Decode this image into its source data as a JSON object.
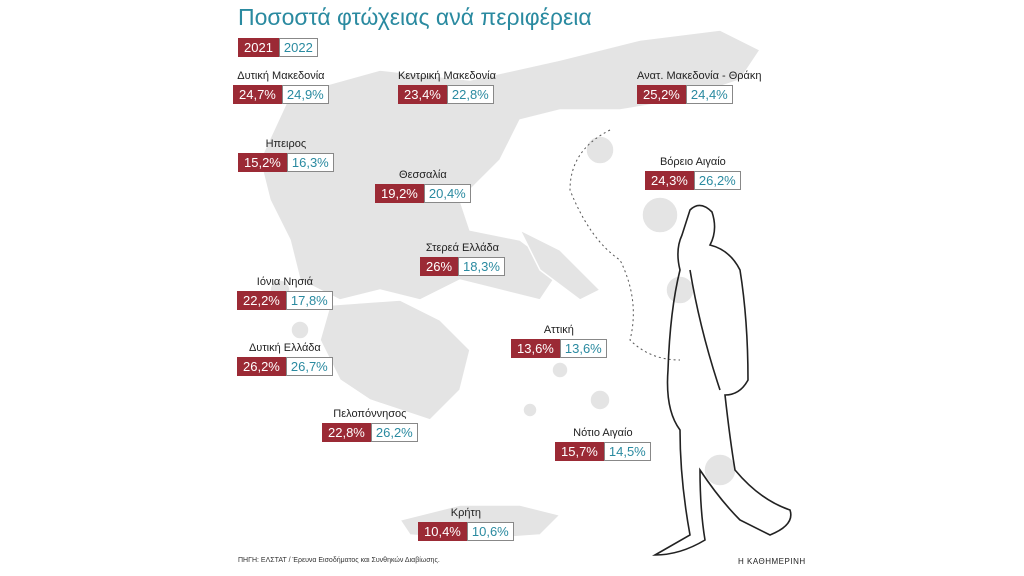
{
  "header": {
    "title": "Ποσοστά φτώχειας ανά περιφέρεια"
  },
  "legend": {
    "year1": "2021",
    "year2": "2022"
  },
  "regions": [
    {
      "name": "Δυτική Μακεδονία",
      "y2021": "24,7%",
      "y2022": "24,9%"
    },
    {
      "name": "Κεντρική Μακεδονία",
      "y2021": "23,4%",
      "y2022": "22,8%"
    },
    {
      "name": "Ανατ. Μακεδονία - Θράκη",
      "y2021": "25,2%",
      "y2022": "24,4%"
    },
    {
      "name": "Ηπειρος",
      "y2021": "15,2%",
      "y2022": "16,3%"
    },
    {
      "name": "Βόρειο Αιγαίο",
      "y2021": "24,3%",
      "y2022": "26,2%"
    },
    {
      "name": "Θεσσαλία",
      "y2021": "19,2%",
      "y2022": "20,4%"
    },
    {
      "name": "Στερεά Ελλάδα",
      "y2021": "26%",
      "y2022": "18,3%"
    },
    {
      "name": "Ιόνια Νησιά",
      "y2021": "22,2%",
      "y2022": "17,8%"
    },
    {
      "name": "Αττική",
      "y2021": "13,6%",
      "y2022": "13,6%"
    },
    {
      "name": "Δυτική Ελλάδα",
      "y2021": "26,2%",
      "y2022": "26,7%"
    },
    {
      "name": "Πελοπόννησος",
      "y2021": "22,8%",
      "y2022": "26,2%"
    },
    {
      "name": "Νότιο Αιγαίο",
      "y2021": "15,7%",
      "y2022": "14,5%"
    },
    {
      "name": "Κρήτη",
      "y2021": "10,4%",
      "y2022": "10,6%"
    }
  ],
  "footer": {
    "source": "ΠΗΓΗ: ΕΛΣΤΑΤ / Έρευνα Εισοδήματος και Συνθηκών Διαβίωσης.",
    "brand": "Η ΚΑΘΗΜΕΡΙΝΗ"
  }
}
